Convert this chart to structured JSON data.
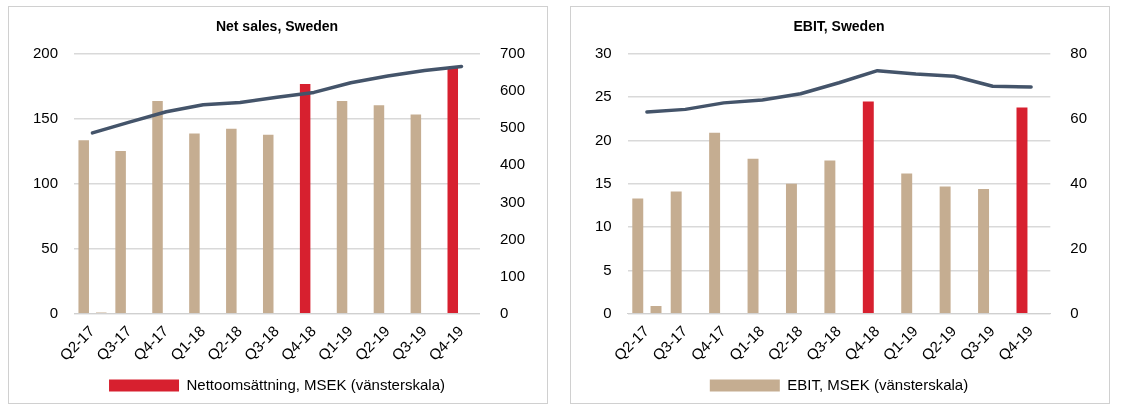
{
  "chart_data": [
    {
      "type": "bar",
      "title": "Net sales, Sweden",
      "categories": [
        "Q2-17",
        "Q3-17",
        "Q4-17",
        "Q1-18",
        "Q2-18",
        "Q3-18",
        "Q4-18",
        "Q1-19",
        "Q2-19",
        "Q3-19",
        "Q4-19"
      ],
      "series": [
        {
          "name": "Nettoomsättning, MSEK (vänsterskala)",
          "color": "#d7202f",
          "colors": [
            "#c5ad91",
            "#c5ad91",
            "#c5ad91",
            "#c5ad91",
            "#c5ad91",
            "#c5ad91",
            "#d7202f",
            "#c5ad91",
            "#c5ad91",
            "#c5ad91",
            "#d7202f"
          ],
          "values": [
            133.5,
            125.3,
            163.6,
            138.7,
            142.4,
            137.8,
            176.7,
            163.6,
            160.5,
            153.4,
            189.3
          ]
        },
        {
          "color": "#c5ad91",
          "values": [
            1,
            null,
            null,
            null,
            null,
            null,
            null,
            null,
            null,
            null,
            null
          ]
        },
        {
          "type": "line",
          "axis": "y2",
          "color": "#44546a",
          "values": [
            487,
            516,
            544,
            563,
            569,
            583,
            596,
            622,
            640,
            655,
            666
          ]
        }
      ],
      "ylim": [
        0,
        200
      ],
      "yticks": [
        0,
        50,
        100,
        150,
        200
      ],
      "y2lim": [
        0,
        700
      ],
      "y2ticks": [
        0,
        100,
        200,
        300,
        400,
        500,
        600,
        700
      ],
      "grid": "y",
      "legend": "bottom",
      "marker": "none"
    },
    {
      "type": "bar",
      "title": "EBIT, Sweden",
      "categories": [
        "Q2-17",
        "Q3-17",
        "Q4-17",
        "Q1-18",
        "Q2-18",
        "Q3-18",
        "Q4-18",
        "Q1-19",
        "Q2-19",
        "Q3-19",
        "Q4-19"
      ],
      "series": [
        {
          "name": "EBIT, MSEK (vänsterskala)",
          "color": "#c5ad91",
          "colors": [
            "#c5ad91",
            "#c5ad91",
            "#c5ad91",
            "#c5ad91",
            "#c5ad91",
            "#c5ad91",
            "#d7202f",
            "#c5ad91",
            "#c5ad91",
            "#c5ad91",
            "#d7202f"
          ],
          "values": [
            13.3,
            14.1,
            20.9,
            17.9,
            15.0,
            17.7,
            24.5,
            16.2,
            14.7,
            14.4,
            23.8
          ]
        },
        {
          "color": "#c5ad91",
          "values": [
            0.9,
            null,
            null,
            null,
            null,
            null,
            null,
            null,
            null,
            null,
            null
          ]
        },
        {
          "type": "line",
          "axis": "y2",
          "color": "#44546a",
          "values": [
            62.1,
            62.9,
            64.9,
            65.8,
            67.7,
            71.1,
            74.8,
            73.8,
            73.1,
            70.0,
            69.8
          ]
        }
      ],
      "ylim": [
        0,
        30
      ],
      "yticks": [
        0,
        5,
        10,
        15,
        20,
        25,
        30
      ],
      "y2lim": [
        0,
        80
      ],
      "y2ticks": [
        0,
        20,
        40,
        60,
        80
      ],
      "grid": "y",
      "legend": "bottom",
      "marker": "none"
    }
  ]
}
